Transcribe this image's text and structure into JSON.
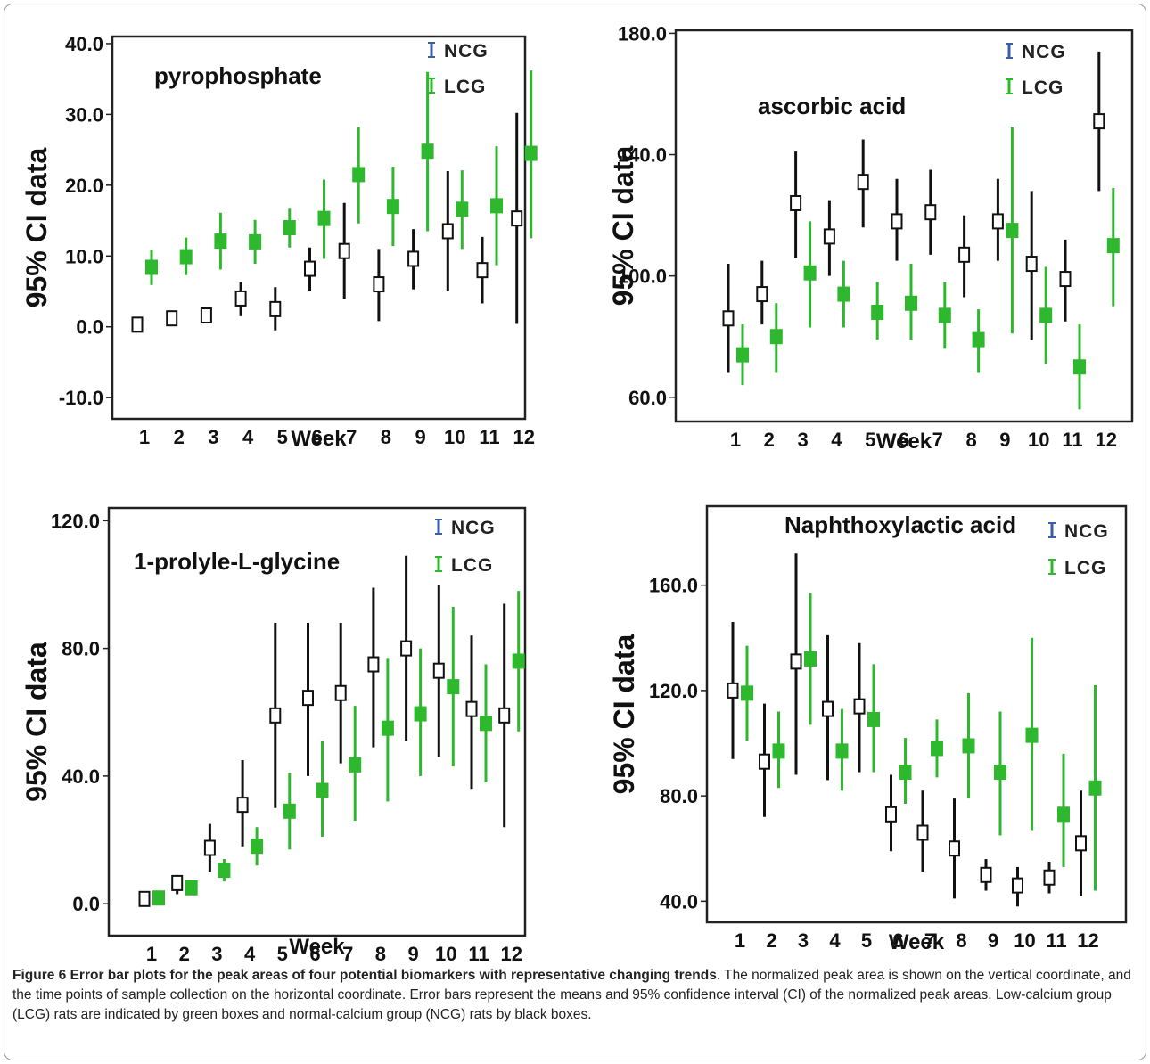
{
  "colors": {
    "ncg": "#111111",
    "lcg": "#2eb82e",
    "legend_ncg": "#3a5fa8"
  },
  "legend": {
    "ncg": "NCG",
    "lcg": "LCG"
  },
  "caption": {
    "title": "Figure 6 Error bar plots for the peak areas of four potential biomarkers with representative changing trends",
    "body": ". The normalized peak area is shown on the vertical coordinate, and the time points of sample collection on the horizontal coordinate. Error bars represent the means and 95% confidence interval (CI) of the normalized peak areas. Low-calcium group (LCG) rats are indicated by green boxes and normal-calcium group (NCG) rats by black boxes."
  },
  "chart_data": [
    {
      "type": "error-bar",
      "title": "pyrophosphate",
      "xlabel": "Week",
      "ylabel": "95% CI data",
      "categories": [
        "1",
        "2",
        "3",
        "4",
        "5",
        "6",
        "7",
        "8",
        "9",
        "10",
        "11",
        "12"
      ],
      "yticks": [
        "-10.0",
        "0.0",
        "10.0",
        "20.0",
        "30.0",
        "40.0"
      ],
      "ylim": [
        -13,
        41
      ],
      "series": [
        {
          "name": "NCG",
          "mean": [
            0.3,
            1.2,
            1.6,
            4.0,
            2.5,
            8.2,
            10.7,
            6.0,
            9.6,
            13.5,
            8.0,
            15.3
          ],
          "lower": [
            -0.2,
            0.3,
            0.8,
            1.5,
            -0.5,
            5.0,
            4.0,
            0.8,
            5.3,
            5.0,
            3.3,
            0.4
          ],
          "upper": [
            1.2,
            2.3,
            2.5,
            6.3,
            5.6,
            11.2,
            17.5,
            11.0,
            13.8,
            22.0,
            12.7,
            30.2
          ]
        },
        {
          "name": "LCG",
          "mean": [
            8.4,
            9.9,
            12.1,
            12.0,
            14.0,
            15.3,
            21.5,
            17.0,
            24.8,
            16.6,
            17.1,
            24.5
          ],
          "lower": [
            5.9,
            7.3,
            8.1,
            8.9,
            11.2,
            9.6,
            14.6,
            11.4,
            13.5,
            11.0,
            8.7,
            12.5
          ],
          "upper": [
            10.9,
            12.6,
            16.1,
            15.1,
            16.8,
            20.8,
            28.2,
            22.6,
            36.0,
            22.1,
            25.5,
            36.2
          ]
        }
      ]
    },
    {
      "type": "error-bar",
      "title": "ascorbic acid",
      "xlabel": "Week",
      "ylabel": "95% CI data",
      "categories": [
        "1",
        "2",
        "3",
        "4",
        "5",
        "6",
        "7",
        "8",
        "9",
        "10",
        "11",
        "12"
      ],
      "yticks": [
        "60.0",
        "100.0",
        "140.0",
        "180.0"
      ],
      "ylim": [
        52,
        181
      ],
      "series": [
        {
          "name": "NCG",
          "mean": [
            86,
            94,
            124,
            113,
            131,
            118,
            121,
            107,
            118,
            104,
            99,
            151
          ],
          "lower": [
            68,
            84,
            106,
            100,
            116,
            105,
            107,
            93,
            105,
            79,
            85,
            128
          ],
          "upper": [
            104,
            105,
            141,
            125,
            145,
            132,
            135,
            120,
            132,
            128,
            112,
            174
          ]
        },
        {
          "name": "LCG",
          "mean": [
            74,
            80,
            101,
            94,
            88,
            91,
            87,
            79,
            115,
            87,
            70,
            110
          ],
          "lower": [
            64,
            68,
            83,
            83,
            79,
            79,
            76,
            68,
            81,
            71,
            56,
            90
          ],
          "upper": [
            84,
            91,
            118,
            105,
            98,
            104,
            98,
            89,
            149,
            103,
            84,
            129
          ]
        }
      ]
    },
    {
      "type": "error-bar",
      "title": "1-prolyle-L-glycine",
      "xlabel": "Week",
      "ylabel": "95% CI data",
      "categories": [
        "1",
        "2",
        "3",
        "4",
        "5",
        "6",
        "7",
        "8",
        "9",
        "10",
        "11",
        "12"
      ],
      "yticks": [
        "0.0",
        "40.0",
        "80.0",
        "120.0"
      ],
      "ylim": [
        -10,
        124
      ],
      "series": [
        {
          "name": "NCG",
          "mean": [
            1.5,
            6.5,
            17.5,
            31,
            59,
            64.5,
            66,
            75,
            80,
            73,
            61,
            59
          ],
          "lower": [
            0,
            3,
            10,
            18,
            30,
            40,
            44,
            49,
            51,
            46,
            36,
            24
          ],
          "upper": [
            3,
            9,
            25,
            45,
            88,
            88,
            88,
            99,
            109,
            100,
            84,
            94
          ]
        },
        {
          "name": "LCG",
          "mean": [
            1.8,
            5,
            10.5,
            18,
            29,
            35.5,
            43.5,
            55,
            59.5,
            68,
            56.5,
            76
          ],
          "lower": [
            0.5,
            3,
            7,
            12,
            17,
            21,
            26,
            32,
            40,
            43,
            38,
            54
          ],
          "upper": [
            3,
            7,
            14,
            24,
            41,
            51,
            62,
            77,
            80,
            93,
            75,
            98
          ]
        }
      ]
    },
    {
      "type": "error-bar",
      "title": "Naphthoxylactic acid",
      "xlabel": "Week",
      "ylabel": "95% CI data",
      "categories": [
        "1",
        "2",
        "3",
        "4",
        "5",
        "6",
        "7",
        "8",
        "9",
        "10",
        "11",
        "12"
      ],
      "yticks": [
        "40.0",
        "80.0",
        "120.0",
        "160.0"
      ],
      "ylim": [
        32,
        190
      ],
      "series": [
        {
          "name": "NCG",
          "mean": [
            120,
            93,
            131,
            113,
            114,
            73,
            66,
            60,
            50,
            46,
            49,
            62
          ],
          "lower": [
            94,
            72,
            88,
            86,
            89,
            59,
            51,
            41,
            44,
            38,
            43,
            42
          ],
          "upper": [
            146,
            115,
            172,
            141,
            138,
            88,
            82,
            79,
            56,
            53,
            55,
            82
          ]
        },
        {
          "name": "LCG",
          "mean": [
            119,
            97,
            132,
            97,
            109,
            89,
            98,
            99,
            89,
            103,
            73,
            83
          ],
          "lower": [
            101,
            83,
            107,
            82,
            89,
            77,
            87,
            79,
            65,
            67,
            53,
            44
          ],
          "upper": [
            137,
            112,
            157,
            113,
            130,
            102,
            109,
            119,
            112,
            140,
            96,
            122
          ]
        }
      ]
    }
  ]
}
